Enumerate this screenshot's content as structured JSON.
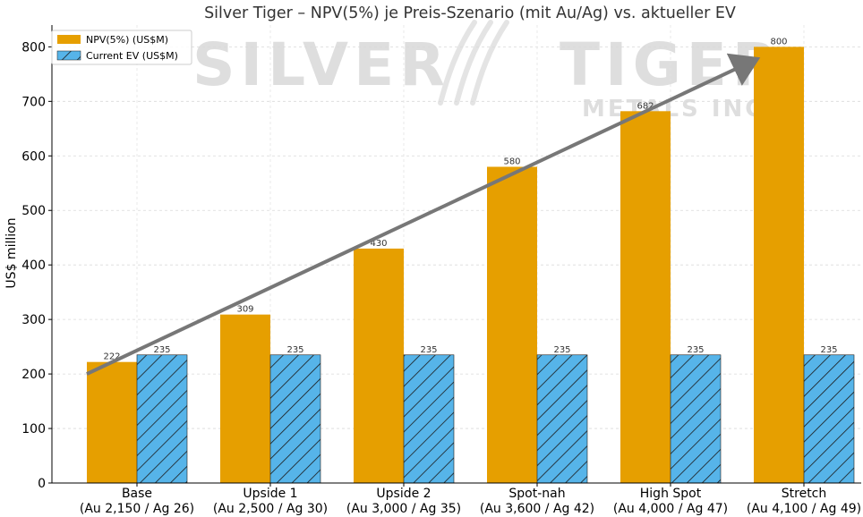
{
  "chart_data": {
    "type": "bar",
    "title": "Silver Tiger – NPV(5%) je Preis-Szenario (mit Au/Ag) vs. aktueller EV",
    "xlabel": "",
    "ylabel": "US$ million",
    "ylim": [
      0,
      840
    ],
    "yticks": [
      0,
      100,
      200,
      300,
      400,
      500,
      600,
      700,
      800
    ],
    "grid": true,
    "legend_position": "top-left",
    "categories": [
      [
        "Base",
        "(Au 2,150 / Ag 26)"
      ],
      [
        "Upside 1",
        "(Au 2,500 / Ag 30)"
      ],
      [
        "Upside 2",
        "(Au 3,000 / Ag 35)"
      ],
      [
        "Spot-nah",
        "(Au 3,600 / Ag 42)"
      ],
      [
        "High Spot",
        "(Au 4,000 / Ag 47)"
      ],
      [
        "Stretch",
        "(Au 4,100 / Ag 49)"
      ]
    ],
    "series": [
      {
        "name": "NPV(5%) (US$M)",
        "values": [
          222,
          309,
          430,
          580,
          682,
          800
        ],
        "color": "#E69F00",
        "pattern": "solid"
      },
      {
        "name": "Current EV (US$M)",
        "values": [
          235,
          235,
          235,
          235,
          235,
          235
        ],
        "color": "#56B4E9",
        "pattern": "hatch"
      }
    ],
    "trend_arrow": {
      "from": [
        0,
        200
      ],
      "to": [
        5,
        775
      ],
      "color": "#777777"
    },
    "watermark": {
      "text": "SILVER",
      "text2": "TIGER",
      "sub": "METALS INC"
    }
  }
}
